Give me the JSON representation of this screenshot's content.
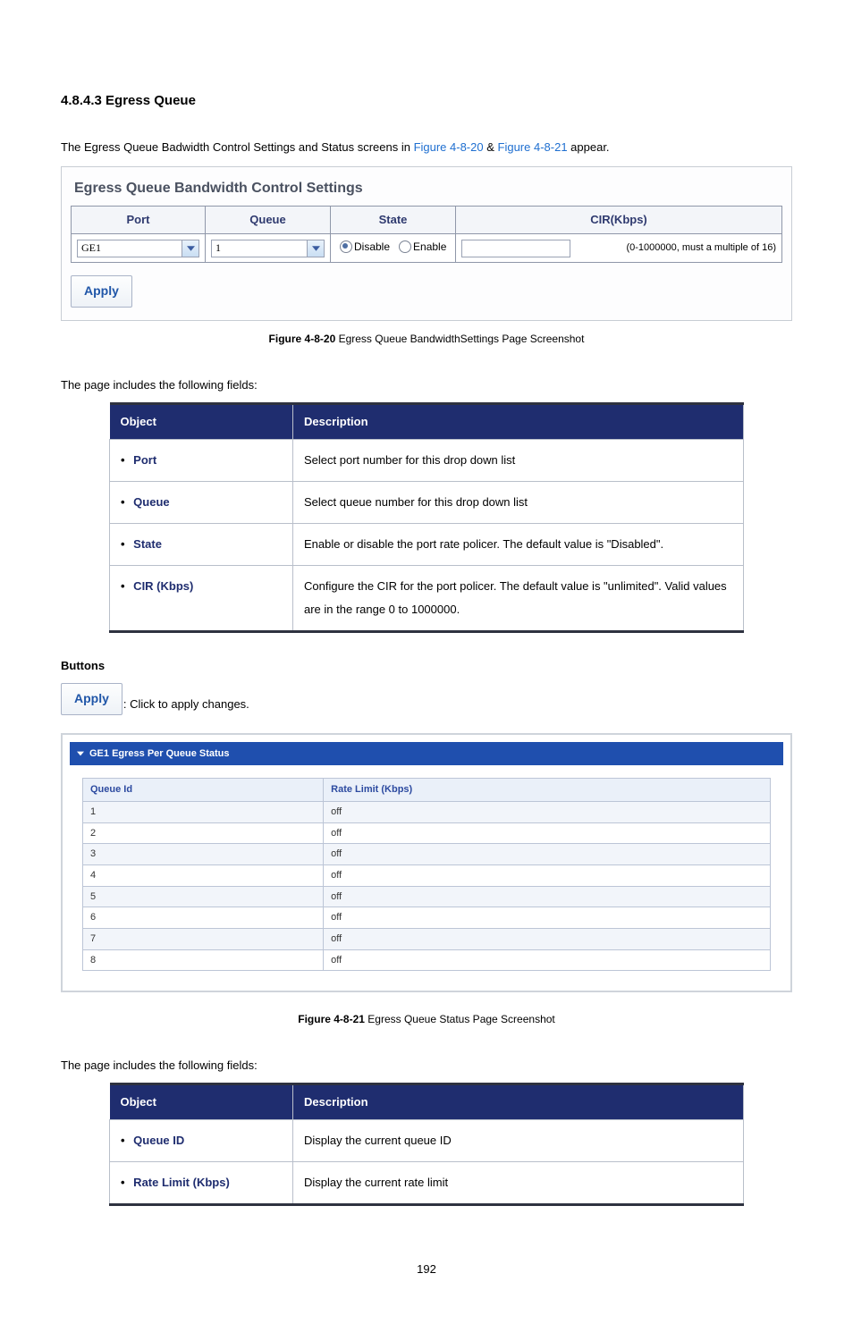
{
  "section_heading": "4.8.4.3 Egress Queue",
  "intro_prefix": "The Egress Queue Badwidth Control Settings and Status screens in ",
  "fig20_link": "Figure 4-8-20",
  "intro_amp": " & ",
  "fig21_link": "Figure 4-8-21",
  "intro_suffix": " appear.",
  "settings": {
    "title": "Egress Queue Bandwidth Control Settings",
    "headers": {
      "port": "Port",
      "queue": "Queue",
      "state": "State",
      "cir": "CIR(Kbps)"
    },
    "port_value": "GE1",
    "queue_value": "1",
    "state": {
      "disable": "Disable",
      "enable": "Enable",
      "selected": "disable"
    },
    "cir_hint": "(0-1000000, must a multiple of 16)",
    "apply_label": "Apply"
  },
  "fig20_caption_bold": "Figure 4-8-20",
  "fig20_caption_rest": " Egress Queue BandwidthSettings Page Screenshot",
  "fields_intro": "The page includes the following fields:",
  "field_table_headers": {
    "object": "Object",
    "description": "Description"
  },
  "field_rows_1": [
    {
      "object": "Port",
      "desc": "Select port number for this drop down list"
    },
    {
      "object": "Queue",
      "desc": "Select queue number for this drop down list"
    },
    {
      "object": "State",
      "desc": "Enable or disable the port rate policer. The default value is \"Disabled\"."
    },
    {
      "object": "CIR (Kbps)",
      "desc": "Configure the CIR for the port policer. The default value is \"unlimited\". Valid values are in the range 0 to 1000000."
    }
  ],
  "buttons_heading": "Buttons",
  "apply_btn_label": "Apply",
  "apply_desc": ": Click to apply changes.",
  "status": {
    "title": "GE1 Egress Per Queue Status",
    "headers": {
      "qid": "Queue Id",
      "rate": "Rate Limit (Kbps)"
    },
    "rows": [
      {
        "qid": "1",
        "rate": "off"
      },
      {
        "qid": "2",
        "rate": "off"
      },
      {
        "qid": "3",
        "rate": "off"
      },
      {
        "qid": "4",
        "rate": "off"
      },
      {
        "qid": "5",
        "rate": "off"
      },
      {
        "qid": "6",
        "rate": "off"
      },
      {
        "qid": "7",
        "rate": "off"
      },
      {
        "qid": "8",
        "rate": "off"
      }
    ]
  },
  "fig21_caption_bold": "Figure 4-8-21",
  "fig21_caption_rest": " Egress Queue Status Page Screenshot",
  "field_rows_2": [
    {
      "object": "Queue ID",
      "desc": "Display the current queue ID"
    },
    {
      "object": "Rate Limit (Kbps)",
      "desc": "Display the current rate limit"
    }
  ],
  "page_number": "192",
  "colors": {
    "link": "#1f6fd0",
    "tbl_header_bg": "#1f2d6f",
    "tbl_header_fg": "#ffffff",
    "tbl_border_outer": "#2e3240",
    "tbl_border_inner": "#b9bfca",
    "obj_text": "#1f2d6f",
    "status_bar_bg": "#1f4fae"
  }
}
